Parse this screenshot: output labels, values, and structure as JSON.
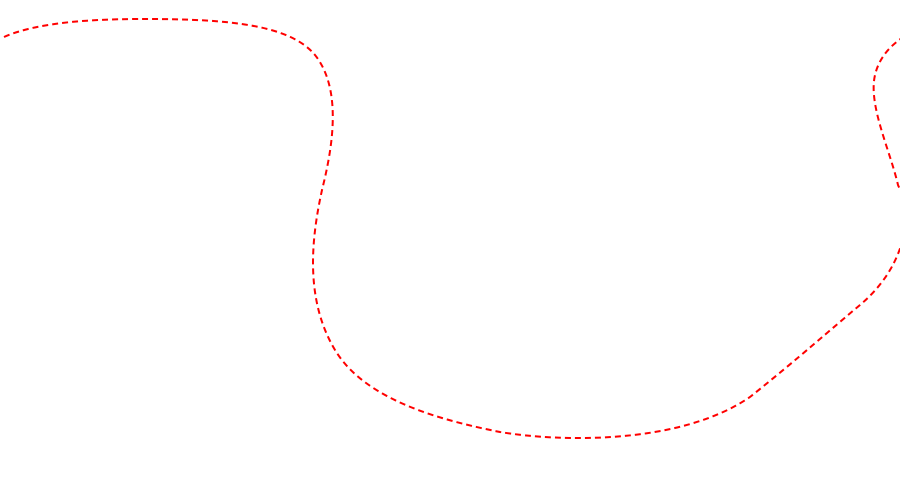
{
  "curve": {
    "stroke_color": "#ff0000",
    "style": "dashed"
  }
}
